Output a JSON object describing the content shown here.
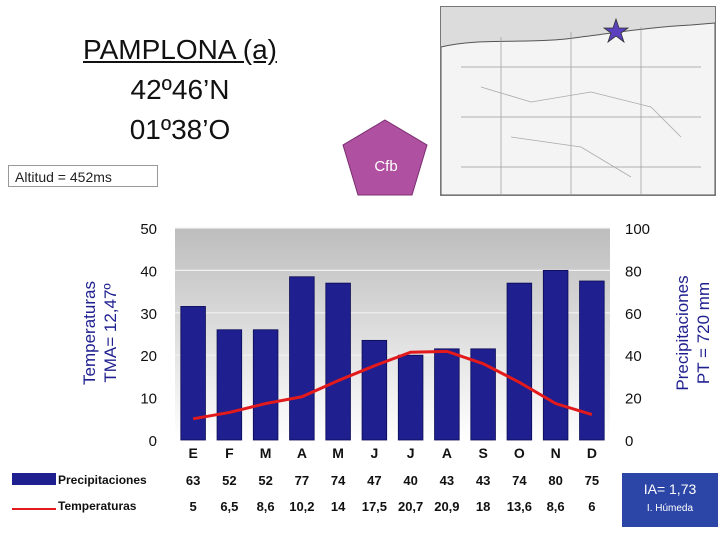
{
  "header": {
    "title_line1": "PAMPLONA (a)",
    "title_line2": "42º46’N",
    "title_line3": "01º38’O",
    "altitude": "Altitud = 452ms",
    "climate_code": "Cfb"
  },
  "index": {
    "ia": "IA= 1,73",
    "humidity": "I. Húmeda"
  },
  "colors": {
    "bar": "#1f1f8f",
    "line": "#e31a1c",
    "plot_bg": "#c0c0c0",
    "pentagon": "#b050a0",
    "ia_box": "#2b46a6"
  },
  "chart_data": {
    "type": "bar",
    "categories": [
      "E",
      "F",
      "M",
      "A",
      "M",
      "J",
      "J",
      "A",
      "S",
      "O",
      "N",
      "D"
    ],
    "series": [
      {
        "name": "Precipitaciones",
        "type": "bar",
        "axis": "right",
        "values": [
          63,
          52,
          52,
          77,
          74,
          47,
          40,
          43,
          43,
          74,
          80,
          75
        ],
        "labels": [
          "63",
          "52",
          "52",
          "77",
          "74",
          "47",
          "40",
          "43",
          "43",
          "74",
          "80",
          "75"
        ]
      },
      {
        "name": "Temperaturas",
        "type": "line",
        "axis": "left",
        "values": [
          5,
          6.5,
          8.6,
          10.2,
          14,
          17.5,
          20.7,
          20.9,
          18,
          13.6,
          8.6,
          6
        ],
        "labels": [
          "5",
          "6,5",
          "8,6",
          "10,2",
          "14",
          "17,5",
          "20,7",
          "20,9",
          "18",
          "13,6",
          "8,6",
          "6"
        ]
      }
    ],
    "ylabel_left": [
      "Temperaturas",
      "TMA= 12,47º"
    ],
    "ylabel_right": [
      "Precipitaciones",
      "PT = 720 mm"
    ],
    "ylim_left": [
      0,
      50
    ],
    "ylim_right": [
      0,
      100
    ],
    "yticks_left": [
      "0",
      "10",
      "20",
      "30",
      "40",
      "50"
    ],
    "yticks_right": [
      "0",
      "20",
      "40",
      "60",
      "80",
      "100"
    ],
    "grid": true
  }
}
